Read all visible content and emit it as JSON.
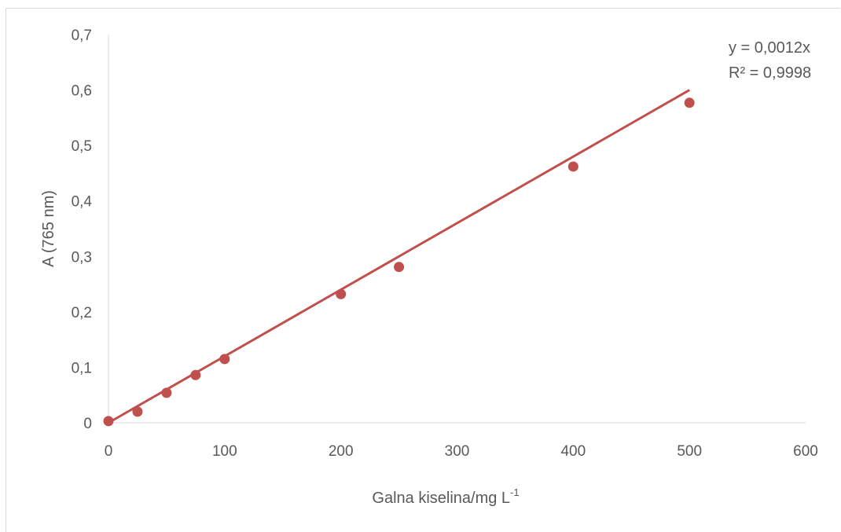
{
  "chart_data": {
    "type": "scatter",
    "xlabel": "Galna kiselina/mg L",
    "xlabel_superscript": "-1",
    "ylabel": "A (765 nm)",
    "xlim": [
      0,
      600
    ],
    "ylim": [
      0,
      0.7
    ],
    "x_ticks": [
      "0",
      "100",
      "200",
      "300",
      "400",
      "500",
      "600"
    ],
    "y_ticks": [
      "0",
      "0,1",
      "0,2",
      "0,3",
      "0,4",
      "0,5",
      "0,6",
      "0,7"
    ],
    "grid": false,
    "series": [
      {
        "color": "#c0504d",
        "points": [
          {
            "x": 0,
            "y": 0.003
          },
          {
            "x": 25,
            "y": 0.02
          },
          {
            "x": 50,
            "y": 0.054
          },
          {
            "x": 75,
            "y": 0.086
          },
          {
            "x": 100,
            "y": 0.115
          },
          {
            "x": 200,
            "y": 0.232
          },
          {
            "x": 250,
            "y": 0.281
          },
          {
            "x": 400,
            "y": 0.462
          },
          {
            "x": 500,
            "y": 0.577
          }
        ]
      }
    ],
    "trendline": {
      "type": "linear",
      "slope": 0.0012,
      "color": "#c0504d",
      "x_range": [
        0,
        500
      ],
      "equation": "y = 0,0012x",
      "r_squared": "R² = 0,9998"
    }
  }
}
